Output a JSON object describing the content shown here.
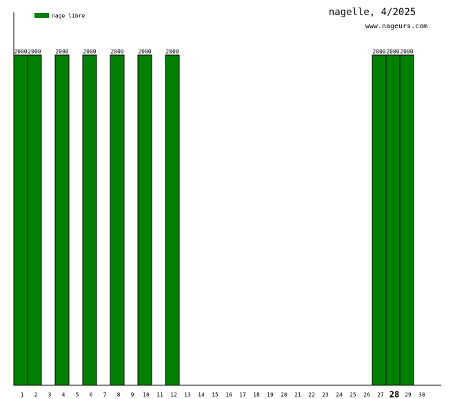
{
  "chart_data": {
    "type": "bar",
    "title": "nagelle, 4/2025",
    "subtitle": "www.nageurs.com",
    "categories": [
      "1",
      "2",
      "3",
      "4",
      "5",
      "6",
      "7",
      "8",
      "9",
      "10",
      "11",
      "12",
      "13",
      "14",
      "15",
      "16",
      "17",
      "18",
      "19",
      "20",
      "21",
      "22",
      "23",
      "24",
      "25",
      "26",
      "27",
      "28",
      "29",
      "30"
    ],
    "series": [
      {
        "name": "nage libre",
        "color": "#008000",
        "values": [
          2000,
          2000,
          null,
          2000,
          null,
          2000,
          null,
          2000,
          null,
          2000,
          null,
          2000,
          null,
          null,
          null,
          null,
          null,
          null,
          null,
          null,
          null,
          null,
          null,
          null,
          null,
          null,
          2000,
          2000,
          2000,
          null
        ]
      }
    ],
    "highlight_category": "28",
    "ylim": [
      0,
      2250
    ]
  }
}
